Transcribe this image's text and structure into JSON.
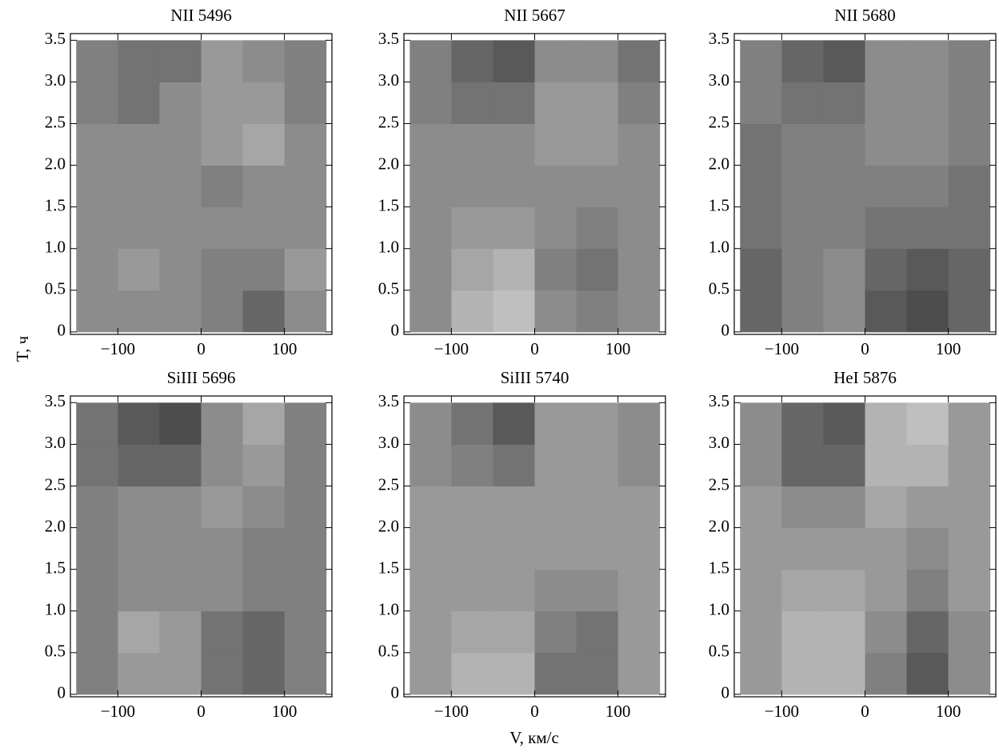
{
  "chart_data": [
    {
      "type": "heatmap",
      "title": "NII 5496",
      "colormap": "gray",
      "ylabel": "T, ч",
      "xbins": [
        -150,
        -100,
        -50,
        0,
        50,
        100,
        150
      ],
      "ybins": [
        0,
        0.5,
        1,
        1.5,
        2,
        2.5,
        3,
        3.5
      ],
      "values": [
        [
          0.55,
          0.55,
          0.55,
          0.5,
          0.4,
          0.55
        ],
        [
          0.55,
          0.6,
          0.55,
          0.5,
          0.5,
          0.6
        ],
        [
          0.55,
          0.55,
          0.55,
          0.55,
          0.55,
          0.55
        ],
        [
          0.55,
          0.55,
          0.55,
          0.5,
          0.55,
          0.55
        ],
        [
          0.55,
          0.55,
          0.55,
          0.6,
          0.65,
          0.55
        ],
        [
          0.5,
          0.45,
          0.55,
          0.6,
          0.6,
          0.5
        ],
        [
          0.5,
          0.45,
          0.45,
          0.6,
          0.55,
          0.5
        ]
      ],
      "xlim": [
        -157,
        157
      ],
      "ylim": [
        -0.03,
        3.58
      ],
      "xticks": [
        {
          "value": -100,
          "label": "−100"
        },
        0,
        100
      ],
      "yticks": [
        0,
        0.5,
        {
          "value": 1,
          "label": "1.0"
        },
        1.5,
        {
          "value": 2,
          "label": "2.0"
        },
        2.5,
        {
          "value": 3,
          "label": "3.0"
        },
        3.5
      ]
    },
    {
      "type": "heatmap",
      "title": "NII 5667",
      "colormap": "gray",
      "xbins": [
        -150,
        -100,
        -50,
        0,
        50,
        100,
        150
      ],
      "ybins": [
        0,
        0.5,
        1,
        1.5,
        2,
        2.5,
        3,
        3.5
      ],
      "values": [
        [
          0.55,
          0.7,
          0.75,
          0.55,
          0.5,
          0.55
        ],
        [
          0.55,
          0.65,
          0.7,
          0.5,
          0.45,
          0.55
        ],
        [
          0.55,
          0.6,
          0.6,
          0.55,
          0.5,
          0.55
        ],
        [
          0.55,
          0.55,
          0.55,
          0.55,
          0.55,
          0.55
        ],
        [
          0.55,
          0.55,
          0.55,
          0.6,
          0.6,
          0.55
        ],
        [
          0.5,
          0.45,
          0.45,
          0.6,
          0.6,
          0.5
        ],
        [
          0.5,
          0.4,
          0.35,
          0.55,
          0.55,
          0.45
        ]
      ],
      "xlim": [
        -157,
        157
      ],
      "ylim": [
        -0.03,
        3.58
      ],
      "xticks": [
        {
          "value": -100,
          "label": "−100"
        },
        0,
        100
      ],
      "yticks": [
        0,
        0.5,
        {
          "value": 1,
          "label": "1.0"
        },
        1.5,
        {
          "value": 2,
          "label": "2.0"
        },
        2.5,
        {
          "value": 3,
          "label": "3.0"
        },
        3.5
      ]
    },
    {
      "type": "heatmap",
      "title": "NII 5680",
      "colormap": "gray",
      "xbins": [
        -150,
        -100,
        -50,
        0,
        50,
        100,
        150
      ],
      "ybins": [
        0,
        0.5,
        1,
        1.5,
        2,
        2.5,
        3,
        3.5
      ],
      "values": [
        [
          0.4,
          0.5,
          0.55,
          0.35,
          0.3,
          0.4
        ],
        [
          0.4,
          0.5,
          0.55,
          0.4,
          0.35,
          0.4
        ],
        [
          0.45,
          0.5,
          0.5,
          0.45,
          0.45,
          0.45
        ],
        [
          0.45,
          0.5,
          0.5,
          0.5,
          0.5,
          0.45
        ],
        [
          0.45,
          0.5,
          0.5,
          0.55,
          0.55,
          0.5
        ],
        [
          0.5,
          0.45,
          0.45,
          0.55,
          0.55,
          0.5
        ],
        [
          0.5,
          0.4,
          0.35,
          0.55,
          0.55,
          0.5
        ]
      ],
      "xlim": [
        -157,
        157
      ],
      "ylim": [
        -0.03,
        3.58
      ],
      "xticks": [
        {
          "value": -100,
          "label": "−100"
        },
        0,
        100
      ],
      "yticks": [
        0,
        0.5,
        {
          "value": 1,
          "label": "1.0"
        },
        1.5,
        {
          "value": 2,
          "label": "2.0"
        },
        2.5,
        {
          "value": 3,
          "label": "3.0"
        },
        3.5
      ]
    },
    {
      "type": "heatmap",
      "title": "SiIII 5696",
      "colormap": "gray",
      "xbins": [
        -150,
        -100,
        -50,
        0,
        50,
        100,
        150
      ],
      "ybins": [
        0,
        0.5,
        1,
        1.5,
        2,
        2.5,
        3,
        3.5
      ],
      "values": [
        [
          0.5,
          0.6,
          0.6,
          0.45,
          0.4,
          0.5
        ],
        [
          0.5,
          0.65,
          0.6,
          0.45,
          0.4,
          0.5
        ],
        [
          0.5,
          0.55,
          0.55,
          0.55,
          0.5,
          0.5
        ],
        [
          0.5,
          0.55,
          0.55,
          0.55,
          0.5,
          0.5
        ],
        [
          0.5,
          0.55,
          0.55,
          0.6,
          0.55,
          0.5
        ],
        [
          0.45,
          0.4,
          0.4,
          0.55,
          0.6,
          0.5
        ],
        [
          0.45,
          0.35,
          0.3,
          0.55,
          0.65,
          0.5
        ]
      ],
      "xlim": [
        -157,
        157
      ],
      "ylim": [
        -0.03,
        3.58
      ],
      "xticks": [
        {
          "value": -100,
          "label": "−100"
        },
        0,
        100
      ],
      "yticks": [
        0,
        0.5,
        {
          "value": 1,
          "label": "1.0"
        },
        1.5,
        {
          "value": 2,
          "label": "2.0"
        },
        2.5,
        {
          "value": 3,
          "label": "3.0"
        },
        3.5
      ]
    },
    {
      "type": "heatmap",
      "title": "SiIII 5740",
      "colormap": "gray",
      "xlabel": "V, км/с",
      "xbins": [
        -150,
        -100,
        -50,
        0,
        50,
        100,
        150
      ],
      "ybins": [
        0,
        0.5,
        1,
        1.5,
        2,
        2.5,
        3,
        3.5
      ],
      "values": [
        [
          0.6,
          0.7,
          0.7,
          0.45,
          0.45,
          0.6
        ],
        [
          0.6,
          0.65,
          0.65,
          0.5,
          0.45,
          0.6
        ],
        [
          0.6,
          0.6,
          0.6,
          0.55,
          0.55,
          0.6
        ],
        [
          0.6,
          0.6,
          0.6,
          0.6,
          0.6,
          0.6
        ],
        [
          0.6,
          0.6,
          0.6,
          0.6,
          0.6,
          0.6
        ],
        [
          0.55,
          0.5,
          0.45,
          0.6,
          0.6,
          0.55
        ],
        [
          0.55,
          0.45,
          0.35,
          0.6,
          0.6,
          0.55
        ]
      ],
      "xlim": [
        -157,
        157
      ],
      "ylim": [
        -0.03,
        3.58
      ],
      "xticks": [
        {
          "value": -100,
          "label": "−100"
        },
        0,
        100
      ],
      "yticks": [
        0,
        0.5,
        {
          "value": 1,
          "label": "1.0"
        },
        1.5,
        {
          "value": 2,
          "label": "2.0"
        },
        2.5,
        {
          "value": 3,
          "label": "3.0"
        },
        3.5
      ]
    },
    {
      "type": "heatmap",
      "title": "HeI 5876",
      "colormap": "gray",
      "xbins": [
        -150,
        -100,
        -50,
        0,
        50,
        100,
        150
      ],
      "ybins": [
        0,
        0.5,
        1,
        1.5,
        2,
        2.5,
        3,
        3.5
      ],
      "values": [
        [
          0.6,
          0.7,
          0.7,
          0.5,
          0.35,
          0.55
        ],
        [
          0.6,
          0.7,
          0.7,
          0.55,
          0.4,
          0.55
        ],
        [
          0.6,
          0.65,
          0.65,
          0.6,
          0.5,
          0.6
        ],
        [
          0.6,
          0.6,
          0.6,
          0.6,
          0.55,
          0.6
        ],
        [
          0.6,
          0.55,
          0.55,
          0.65,
          0.6,
          0.6
        ],
        [
          0.55,
          0.4,
          0.4,
          0.7,
          0.7,
          0.6
        ],
        [
          0.55,
          0.4,
          0.35,
          0.7,
          0.75,
          0.6
        ]
      ],
      "xlim": [
        -157,
        157
      ],
      "ylim": [
        -0.03,
        3.58
      ],
      "xticks": [
        {
          "value": -100,
          "label": "−100"
        },
        0,
        100
      ],
      "yticks": [
        0,
        0.5,
        {
          "value": 1,
          "label": "1.0"
        },
        1.5,
        {
          "value": 2,
          "label": "2.0"
        },
        2.5,
        {
          "value": 3,
          "label": "3.0"
        },
        3.5
      ]
    }
  ]
}
